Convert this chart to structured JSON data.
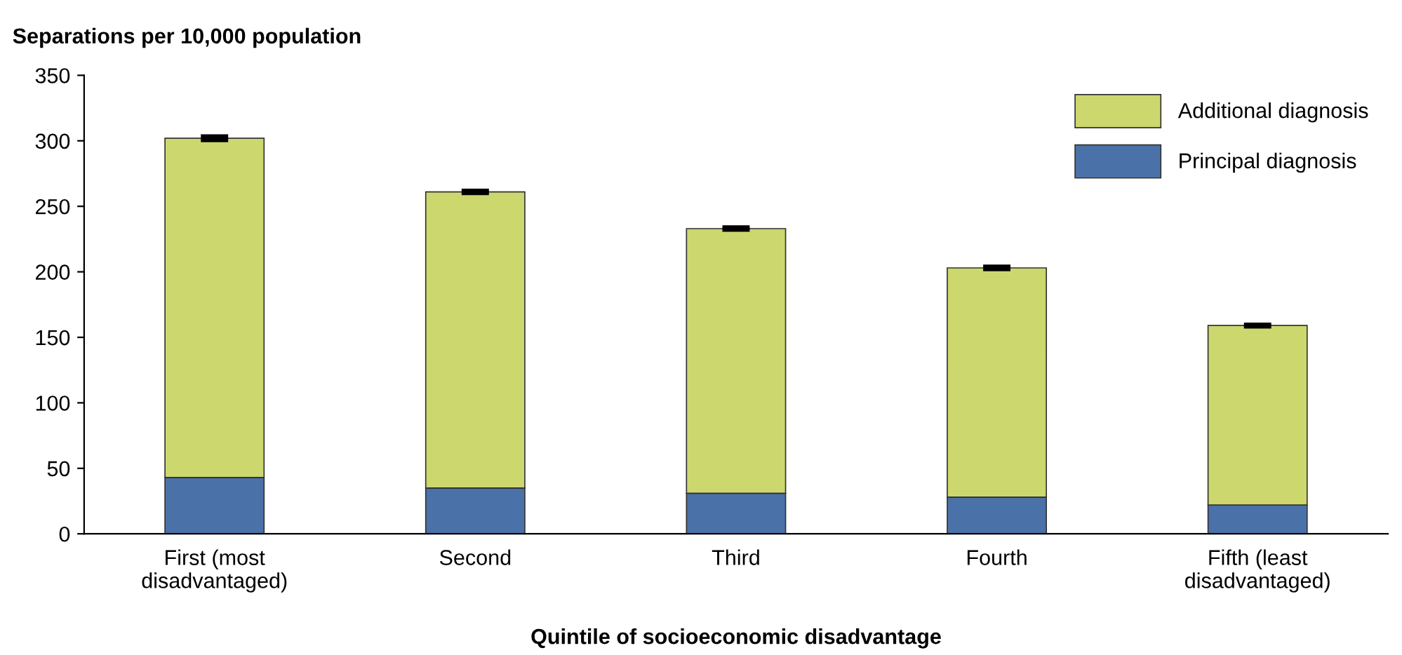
{
  "chart_data": {
    "type": "bar",
    "stacked": true,
    "ylabel": "Separations per 10,000 population",
    "xlabel": "Quintile of socioeconomic disadvantage",
    "categories": [
      "First (most\ndisadvantaged)",
      "Second",
      "Third",
      "Fourth",
      "Fifth (least\ndisadvantaged)"
    ],
    "series": [
      {
        "name": "Principal diagnosis",
        "color": "#4a72a8",
        "values": [
          43,
          35,
          31,
          28,
          22
        ]
      },
      {
        "name": "Additional diagnosis",
        "color": "#ccd76e",
        "values": [
          259,
          226,
          202,
          175,
          137
        ],
        "errors": [
          1.5,
          1,
          1,
          1,
          0.8
        ]
      }
    ],
    "ylim": [
      0,
      350
    ],
    "yticks": [
      0,
      50,
      100,
      150,
      200,
      250,
      300,
      350
    ],
    "grid": false,
    "legend": "top right"
  }
}
